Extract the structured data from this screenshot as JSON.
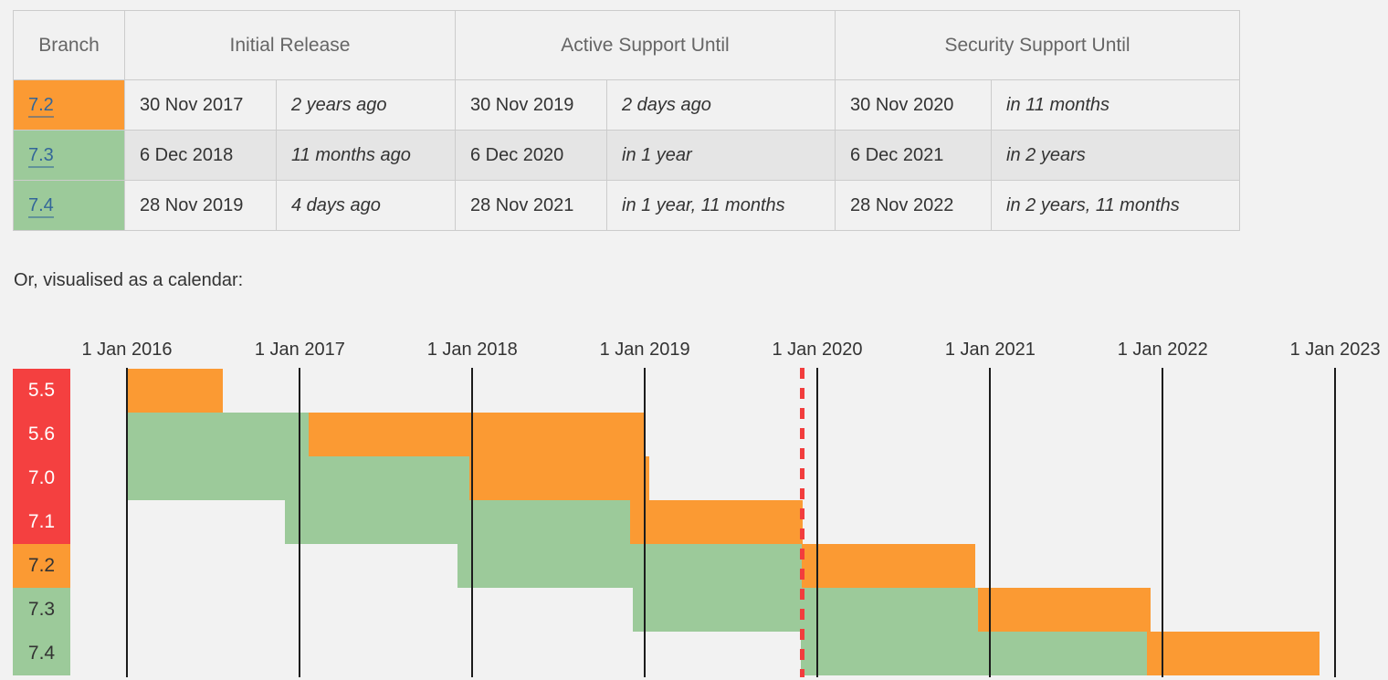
{
  "table": {
    "headers": [
      "Branch",
      "Initial Release",
      "Active Support Until",
      "Security Support Until"
    ],
    "rows": [
      {
        "branch": "7.2",
        "status": "orange",
        "initial": {
          "date": "30 Nov 2017",
          "relative": "2 years ago"
        },
        "active": {
          "date": "30 Nov 2019",
          "relative": "2 days ago"
        },
        "security": {
          "date": "30 Nov 2020",
          "relative": "in 11 months"
        }
      },
      {
        "branch": "7.3",
        "status": "green",
        "initial": {
          "date": "6 Dec 2018",
          "relative": "11 months ago"
        },
        "active": {
          "date": "6 Dec 2020",
          "relative": "in 1 year"
        },
        "security": {
          "date": "6 Dec 2021",
          "relative": "in 2 years"
        }
      },
      {
        "branch": "7.4",
        "status": "green",
        "initial": {
          "date": "28 Nov 2019",
          "relative": "4 days ago"
        },
        "active": {
          "date": "28 Nov 2021",
          "relative": "in 1 year, 11 months"
        },
        "security": {
          "date": "28 Nov 2022",
          "relative": "in 2 years, 11 months"
        }
      }
    ]
  },
  "caption": "Or, visualised as a calendar:",
  "colors": {
    "red": "#f44040",
    "orange": "#fb9a33",
    "green": "#9cca9a",
    "link_blue": "#336699",
    "today_red": "#f23d3d",
    "gridline": "#1c1c1c"
  },
  "chart_data": {
    "type": "gantt",
    "x_axis": {
      "tick_labels": [
        "1 Jan 2016",
        "1 Jan 2017",
        "1 Jan 2018",
        "1 Jan 2019",
        "1 Jan 2020",
        "1 Jan 2021",
        "1 Jan 2022",
        "1 Jan 2023"
      ],
      "tick_dates": [
        "2016-01-01",
        "2017-01-01",
        "2018-01-01",
        "2019-01-01",
        "2020-01-01",
        "2021-01-01",
        "2022-01-01",
        "2023-01-01"
      ],
      "range": [
        "2016-01-01",
        "2023-01-01"
      ],
      "grid": true
    },
    "today_marker": {
      "date": "2019-12-02",
      "style": "dashed-red"
    },
    "branches": [
      {
        "label": "5.5",
        "label_color": "red",
        "segments": [
          {
            "color": "orange",
            "start": "2016-01-01",
            "end": "2016-07-21"
          }
        ]
      },
      {
        "label": "5.6",
        "label_color": "red",
        "segments": [
          {
            "color": "green",
            "start": "2016-01-01",
            "end": "2017-01-19"
          },
          {
            "color": "orange",
            "start": "2017-01-19",
            "end": "2018-12-31"
          }
        ]
      },
      {
        "label": "7.0",
        "label_color": "red",
        "segments": [
          {
            "color": "green",
            "start": "2016-01-01",
            "end": "2017-12-25"
          },
          {
            "color": "orange",
            "start": "2017-12-25",
            "end": "2019-01-10"
          }
        ]
      },
      {
        "label": "7.1",
        "label_color": "red",
        "segments": [
          {
            "color": "green",
            "start": "2016-11-30",
            "end": "2018-12-01"
          },
          {
            "color": "orange",
            "start": "2018-12-01",
            "end": "2019-12-01"
          }
        ]
      },
      {
        "label": "7.2",
        "label_color": "orange",
        "segments": [
          {
            "color": "green",
            "start": "2017-11-30",
            "end": "2019-11-30"
          },
          {
            "color": "orange",
            "start": "2019-11-30",
            "end": "2020-11-30"
          }
        ]
      },
      {
        "label": "7.3",
        "label_color": "green",
        "segments": [
          {
            "color": "green",
            "start": "2018-12-06",
            "end": "2020-12-06"
          },
          {
            "color": "orange",
            "start": "2020-12-06",
            "end": "2021-12-06"
          }
        ]
      },
      {
        "label": "7.4",
        "label_color": "green",
        "segments": [
          {
            "color": "green",
            "start": "2019-11-28",
            "end": "2021-11-28"
          },
          {
            "color": "orange",
            "start": "2021-11-28",
            "end": "2022-11-28"
          }
        ]
      }
    ]
  }
}
